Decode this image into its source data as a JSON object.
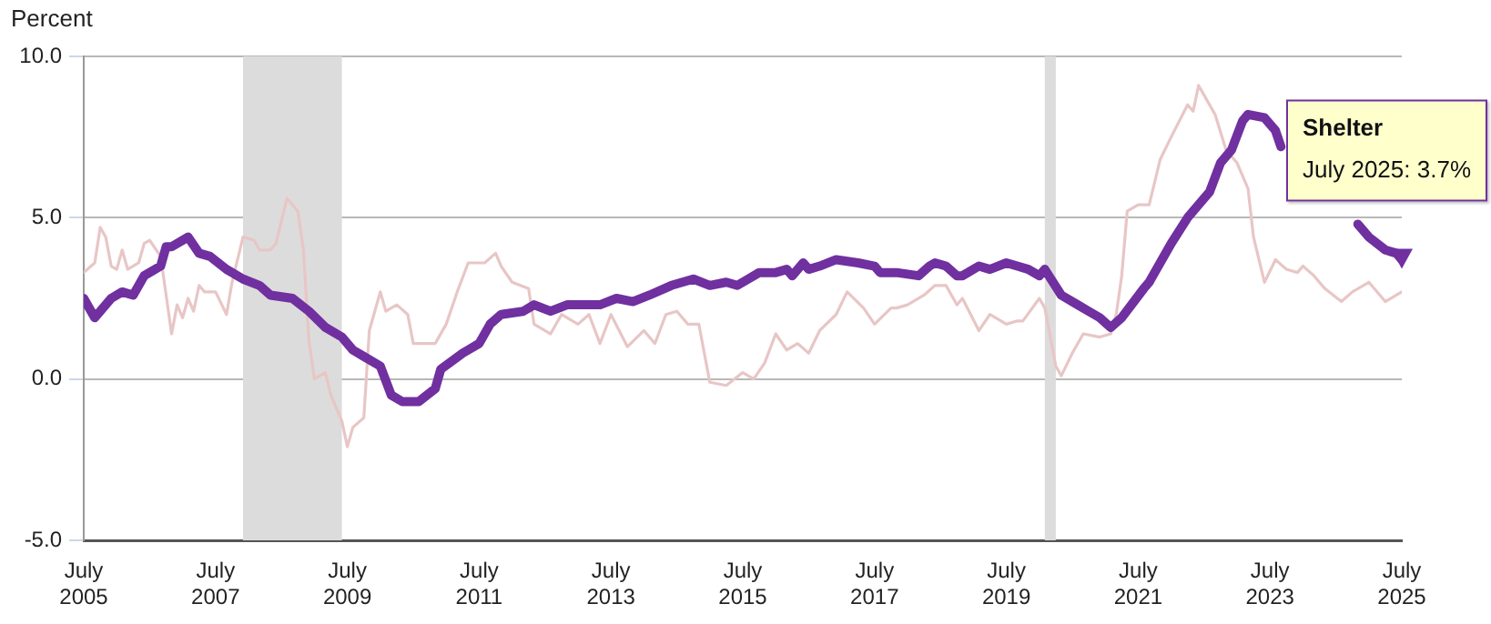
{
  "chart_data": {
    "type": "line",
    "ylabel": "Percent",
    "xlim": [
      "2005-07",
      "2025-07"
    ],
    "xticks": [
      {
        "value": "2005-07",
        "label": "July 2005"
      },
      {
        "value": "2007-07",
        "label": "July 2007"
      },
      {
        "value": "2009-07",
        "label": "July 2009"
      },
      {
        "value": "2011-07",
        "label": "July 2011"
      },
      {
        "value": "2013-07",
        "label": "July 2013"
      },
      {
        "value": "2015-07",
        "label": "July 2015"
      },
      {
        "value": "2017-07",
        "label": "July 2017"
      },
      {
        "value": "2019-07",
        "label": "July 2019"
      },
      {
        "value": "2021-07",
        "label": "July 2021"
      },
      {
        "value": "2023-07",
        "label": "July 2023"
      },
      {
        "value": "2025-07",
        "label": "July 2025"
      }
    ],
    "ylim": [
      -5,
      10
    ],
    "yticks": [
      {
        "value": -5,
        "label": "-5.0"
      },
      {
        "value": 0,
        "label": "0.0"
      },
      {
        "value": 5,
        "label": "5.0"
      },
      {
        "value": 10,
        "label": "10.0"
      }
    ],
    "grid": "y",
    "marker": "none",
    "line_style": "solid",
    "bands": [
      {
        "axis": "x",
        "from": "2007-12",
        "to": "2009-06",
        "color": "#dcdcdc"
      },
      {
        "axis": "x",
        "from": "2020-02",
        "to": "2020-04",
        "color": "#dcdcdc"
      }
    ],
    "series": [
      {
        "color": "#e8c6c6",
        "x": [
          "2005-07",
          "2005-09",
          "2005-10",
          "2005-11",
          "2005-12",
          "2006-01",
          "2006-02",
          "2006-03",
          "2006-05",
          "2006-06",
          "2006-07",
          "2006-09",
          "2006-11",
          "2006-12",
          "2007-01",
          "2007-02",
          "2007-03",
          "2007-04",
          "2007-05",
          "2007-07",
          "2007-09",
          "2007-10",
          "2007-12",
          "2008-02",
          "2008-03",
          "2008-05",
          "2008-06",
          "2008-08",
          "2008-10",
          "2008-11",
          "2008-12",
          "2009-01",
          "2009-03",
          "2009-04",
          "2009-06",
          "2009-07",
          "2009-08",
          "2009-10",
          "2009-11",
          "2010-01",
          "2010-02",
          "2010-04",
          "2010-06",
          "2010-07",
          "2010-09",
          "2010-11",
          "2011-01",
          "2011-03",
          "2011-05",
          "2011-08",
          "2011-10",
          "2011-11",
          "2012-01",
          "2012-04",
          "2012-05",
          "2012-08",
          "2012-10",
          "2012-12",
          "2013-01",
          "2013-03",
          "2013-05",
          "2013-07",
          "2013-10",
          "2014-01",
          "2014-03",
          "2014-05",
          "2014-07",
          "2014-09",
          "2014-11",
          "2015-01",
          "2015-04",
          "2015-07",
          "2015-09",
          "2015-11",
          "2016-01",
          "2016-03",
          "2016-05",
          "2016-07",
          "2016-09",
          "2016-12",
          "2017-02",
          "2017-05",
          "2017-07",
          "2017-10",
          "2017-11",
          "2018-01",
          "2018-04",
          "2018-06",
          "2018-08",
          "2018-10",
          "2018-11",
          "2019-02",
          "2019-04",
          "2019-07",
          "2019-09",
          "2019-10",
          "2020-01",
          "2020-02",
          "2020-04",
          "2020-05",
          "2020-07",
          "2020-09",
          "2020-12",
          "2021-02",
          "2021-03",
          "2021-04",
          "2021-05",
          "2021-07",
          "2021-09",
          "2021-11",
          "2022-01",
          "2022-04",
          "2022-05",
          "2022-06",
          "2022-09",
          "2022-11",
          "2023-01",
          "2023-03",
          "2023-04",
          "2023-06",
          "2023-08",
          "2023-10",
          "2023-12",
          "2024-01",
          "2024-03",
          "2024-05",
          "2024-08",
          "2024-10",
          "2025-01",
          "2025-04",
          "2025-06",
          "2025-07"
        ],
        "values": [
          3.3,
          3.6,
          4.7,
          4.4,
          3.5,
          3.4,
          4.0,
          3.4,
          3.6,
          4.2,
          4.3,
          3.8,
          1.4,
          2.3,
          1.9,
          2.5,
          2.1,
          2.9,
          2.7,
          2.7,
          2.0,
          3.0,
          4.4,
          4.3,
          4.0,
          4.0,
          4.2,
          5.6,
          5.2,
          4.0,
          1.2,
          0.0,
          0.2,
          -0.5,
          -1.3,
          -2.1,
          -1.5,
          -1.2,
          1.5,
          2.7,
          2.1,
          2.3,
          2.0,
          1.1,
          1.1,
          1.1,
          1.7,
          2.7,
          3.6,
          3.6,
          3.9,
          3.5,
          3.0,
          2.8,
          1.7,
          1.4,
          2.0,
          1.8,
          1.7,
          2.0,
          1.1,
          2.0,
          1.0,
          1.5,
          1.1,
          2.0,
          2.1,
          1.7,
          1.7,
          -0.1,
          -0.2,
          0.2,
          0.0,
          0.5,
          1.4,
          0.9,
          1.1,
          0.8,
          1.5,
          2.0,
          2.7,
          2.2,
          1.7,
          2.2,
          2.2,
          2.3,
          2.6,
          2.9,
          2.9,
          2.3,
          2.5,
          1.5,
          2.0,
          1.7,
          1.8,
          1.8,
          2.5,
          2.2,
          0.4,
          0.1,
          0.8,
          1.4,
          1.3,
          1.4,
          2.0,
          3.2,
          5.2,
          5.4,
          5.4,
          6.8,
          7.5,
          8.5,
          8.3,
          9.1,
          8.2,
          7.1,
          6.7,
          5.9,
          4.4,
          3.0,
          3.7,
          3.4,
          3.3,
          3.5,
          3.2,
          2.8,
          2.4,
          2.7,
          3.0,
          2.4,
          2.6,
          2.7
        ]
      },
      {
        "name": "Shelter",
        "color": "#7030a0",
        "x": [
          "2005-07",
          "2005-09",
          "2005-12",
          "2006-02",
          "2006-04",
          "2006-06",
          "2006-09",
          "2006-10",
          "2006-11",
          "2007-02",
          "2007-04",
          "2007-06",
          "2007-09",
          "2007-12",
          "2008-03",
          "2008-05",
          "2008-09",
          "2008-12",
          "2009-03",
          "2009-06",
          "2009-08",
          "2009-10",
          "2010-01",
          "2010-03",
          "2010-05",
          "2010-08",
          "2010-11",
          "2010-12",
          "2011-04",
          "2011-07",
          "2011-09",
          "2011-11",
          "2012-03",
          "2012-05",
          "2012-08",
          "2012-11",
          "2013-02",
          "2013-05",
          "2013-08",
          "2013-11",
          "2014-02",
          "2014-06",
          "2014-08",
          "2014-10",
          "2015-01",
          "2015-04",
          "2015-06",
          "2015-08",
          "2015-10",
          "2016-01",
          "2016-03",
          "2016-04",
          "2016-06",
          "2016-07",
          "2016-09",
          "2016-12",
          "2017-04",
          "2017-07",
          "2017-08",
          "2017-11",
          "2018-03",
          "2018-05",
          "2018-06",
          "2018-08",
          "2018-10",
          "2018-11",
          "2019-02",
          "2019-04",
          "2019-07",
          "2019-09",
          "2019-11",
          "2020-01",
          "2020-02",
          "2020-05",
          "2020-08",
          "2020-10",
          "2020-12",
          "2021-02",
          "2021-04",
          "2021-08",
          "2021-09",
          "2021-11",
          "2022-01",
          "2022-04",
          "2022-07",
          "2022-08",
          "2022-10",
          "2022-12",
          "2023-02",
          "2023-03",
          "2023-06",
          "2023-08",
          "2023-09",
          "2024-03",
          "2024-11",
          "2025-01",
          "2025-04",
          "2025-06",
          "2025-07"
        ],
        "values": [
          2.5,
          1.9,
          2.5,
          2.7,
          2.6,
          3.2,
          3.5,
          4.1,
          4.1,
          4.4,
          3.9,
          3.8,
          3.4,
          3.1,
          2.9,
          2.6,
          2.5,
          2.1,
          1.6,
          1.3,
          0.9,
          0.7,
          0.4,
          -0.5,
          -0.7,
          -0.7,
          -0.3,
          0.3,
          0.8,
          1.1,
          1.7,
          2.0,
          2.1,
          2.3,
          2.1,
          2.3,
          2.3,
          2.3,
          2.5,
          2.4,
          2.6,
          2.9,
          3.0,
          3.1,
          2.9,
          3.0,
          2.9,
          3.1,
          3.3,
          3.3,
          3.4,
          3.2,
          3.6,
          3.4,
          3.5,
          3.7,
          3.6,
          3.5,
          3.3,
          3.3,
          3.2,
          3.5,
          3.6,
          3.5,
          3.2,
          3.2,
          3.5,
          3.4,
          3.6,
          3.5,
          3.4,
          3.2,
          3.4,
          2.6,
          2.3,
          2.1,
          1.9,
          1.6,
          1.9,
          2.8,
          3.0,
          3.6,
          4.2,
          5.0,
          5.6,
          5.8,
          6.7,
          7.1,
          8.0,
          8.2,
          8.1,
          7.7,
          7.2,
          null,
          4.8,
          4.4,
          4.0,
          3.9,
          3.7
        ]
      }
    ],
    "annotations": [
      "July 2025: 3.7%"
    ]
  }
}
